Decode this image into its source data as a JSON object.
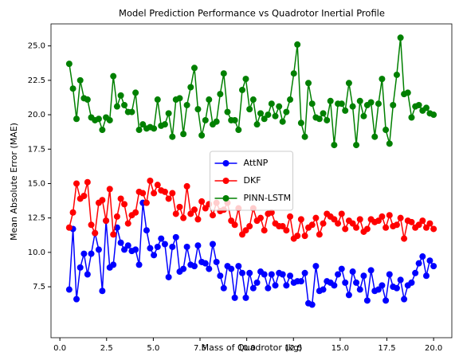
{
  "chart_data": {
    "type": "line",
    "title": "Model Prediction Performance vs Quadrotor Inertial Profile",
    "xlabel": "Mass of Quadrotor (kg)",
    "ylabel": "Mean Absolute Error (MAE)",
    "x": [
      0.5,
      0.7,
      0.89,
      1.09,
      1.29,
      1.48,
      1.68,
      1.88,
      2.08,
      2.27,
      2.47,
      2.67,
      2.86,
      3.06,
      3.26,
      3.45,
      3.65,
      3.85,
      4.05,
      4.24,
      4.44,
      4.64,
      4.83,
      5.03,
      5.23,
      5.42,
      5.62,
      5.82,
      6.02,
      6.21,
      6.41,
      6.61,
      6.8,
      7.0,
      7.2,
      7.39,
      7.59,
      7.79,
      7.98,
      8.18,
      8.38,
      8.58,
      8.77,
      8.97,
      9.17,
      9.36,
      9.56,
      9.76,
      9.95,
      10.15,
      10.35,
      10.55,
      10.74,
      10.94,
      11.14,
      11.33,
      11.53,
      11.73,
      11.92,
      12.12,
      12.32,
      12.52,
      12.71,
      12.91,
      13.11,
      13.3,
      13.5,
      13.7,
      13.89,
      14.09,
      14.29,
      14.48,
      14.68,
      14.88,
      15.08,
      15.27,
      15.47,
      15.67,
      15.86,
      16.06,
      16.26,
      16.45,
      16.65,
      16.85,
      17.05,
      17.24,
      17.44,
      17.64,
      17.83,
      18.03,
      18.23,
      18.42,
      18.62,
      18.82,
      19.02,
      19.21,
      19.41,
      19.61,
      19.8,
      20.0
    ],
    "series": [
      {
        "name": "AttNP",
        "color": "#0000ff",
        "values": [
          7.3,
          11.7,
          6.6,
          8.9,
          9.9,
          8.4,
          9.9,
          11.4,
          10.2,
          7.2,
          12.3,
          8.9,
          9.1,
          11.8,
          10.7,
          10.2,
          10.5,
          10.1,
          10.2,
          9.1,
          13.6,
          11.6,
          10.3,
          9.8,
          10.4,
          11.0,
          10.6,
          8.2,
          10.4,
          11.1,
          8.6,
          8.8,
          10.4,
          9.1,
          9.0,
          10.5,
          9.3,
          9.2,
          8.8,
          10.6,
          9.3,
          8.3,
          7.4,
          9.0,
          8.8,
          6.7,
          9.0,
          8.5,
          6.7,
          8.5,
          7.4,
          7.8,
          8.6,
          8.4,
          7.4,
          8.4,
          7.6,
          8.5,
          8.4,
          7.6,
          8.3,
          7.8,
          7.9,
          7.9,
          8.5,
          6.3,
          6.2,
          9.0,
          7.2,
          7.3,
          7.9,
          7.8,
          7.6,
          8.4,
          8.8,
          7.8,
          6.9,
          8.6,
          7.8,
          7.3,
          8.3,
          6.5,
          8.7,
          7.2,
          7.3,
          7.6,
          6.5,
          8.4,
          7.5,
          7.4,
          8.0,
          6.6,
          7.6,
          7.8,
          8.5,
          9.2,
          9.7,
          8.3,
          9.4,
          9.0
        ]
      },
      {
        "name": "DKF",
        "color": "#ff0000",
        "values": [
          11.8,
          12.9,
          15.0,
          13.9,
          14.1,
          15.1,
          12.0,
          11.4,
          13.6,
          13.8,
          12.3,
          14.6,
          11.3,
          12.6,
          13.9,
          13.5,
          12.1,
          12.7,
          12.9,
          14.4,
          14.3,
          13.6,
          15.2,
          14.3,
          14.9,
          14.5,
          14.4,
          13.9,
          14.3,
          12.8,
          13.3,
          12.5,
          14.8,
          12.8,
          13.1,
          12.4,
          13.7,
          13.2,
          13.5,
          12.7,
          13.6,
          13.0,
          13.1,
          13.6,
          12.3,
          12.0,
          13.2,
          11.3,
          11.6,
          11.9,
          13.2,
          12.3,
          12.5,
          11.6,
          12.8,
          12.9,
          12.1,
          11.9,
          11.9,
          11.6,
          12.6,
          11.0,
          11.2,
          12.4,
          11.2,
          11.8,
          12.0,
          12.5,
          11.3,
          12.1,
          12.8,
          12.6,
          12.4,
          12.1,
          12.8,
          11.7,
          12.3,
          12.1,
          11.8,
          12.4,
          11.5,
          11.7,
          12.4,
          12.2,
          12.3,
          12.6,
          11.8,
          12.7,
          11.9,
          12.0,
          12.5,
          11.0,
          12.3,
          12.2,
          11.8,
          12.0,
          12.3,
          11.8,
          12.1,
          11.7
        ]
      },
      {
        "name": "PINN-LSTM",
        "color": "#008000",
        "values": [
          23.7,
          21.9,
          19.7,
          22.5,
          21.2,
          21.1,
          19.8,
          19.6,
          19.7,
          18.9,
          19.8,
          19.6,
          22.8,
          20.6,
          21.4,
          20.7,
          20.2,
          20.2,
          21.6,
          18.9,
          19.3,
          19.0,
          19.1,
          19.0,
          21.1,
          19.2,
          19.3,
          20.1,
          18.4,
          21.1,
          21.2,
          18.6,
          20.7,
          22.0,
          23.4,
          20.4,
          18.5,
          19.6,
          21.1,
          19.3,
          19.5,
          21.5,
          23.0,
          20.2,
          19.6,
          19.6,
          18.9,
          21.8,
          22.6,
          20.4,
          21.1,
          19.3,
          20.1,
          19.7,
          20.0,
          20.8,
          19.9,
          20.6,
          19.5,
          20.2,
          21.1,
          23.0,
          25.1,
          19.4,
          18.4,
          22.3,
          20.8,
          19.8,
          19.7,
          20.1,
          19.6,
          21.0,
          17.8,
          20.8,
          20.8,
          20.3,
          22.3,
          20.6,
          17.8,
          21.0,
          19.9,
          20.7,
          20.9,
          18.4,
          20.8,
          22.6,
          18.9,
          17.9,
          20.7,
          22.9,
          25.6,
          21.5,
          21.6,
          19.8,
          20.6,
          20.7,
          20.3,
          20.5,
          20.1,
          20.0
        ]
      }
    ],
    "xlim": [
      -0.475,
      20.975
    ],
    "ylim": [
      3.8,
      26.6
    ],
    "xticks": [
      {
        "value": 0,
        "label": "0.0"
      },
      2.5,
      {
        "value": 5,
        "label": "5.0"
      },
      7.5,
      {
        "value": 10,
        "label": "10.0"
      },
      12.5,
      {
        "value": 15,
        "label": "15.0"
      },
      17.5,
      {
        "value": 20,
        "label": "20.0"
      }
    ],
    "yticks": [
      7.5,
      {
        "value": 10,
        "label": "10.0"
      },
      12.5,
      {
        "value": 15,
        "label": "15.0"
      },
      17.5,
      {
        "value": 20,
        "label": "20.0"
      },
      22.5,
      {
        "value": 25,
        "label": "25.0"
      }
    ],
    "grid": false,
    "legend": "center"
  }
}
